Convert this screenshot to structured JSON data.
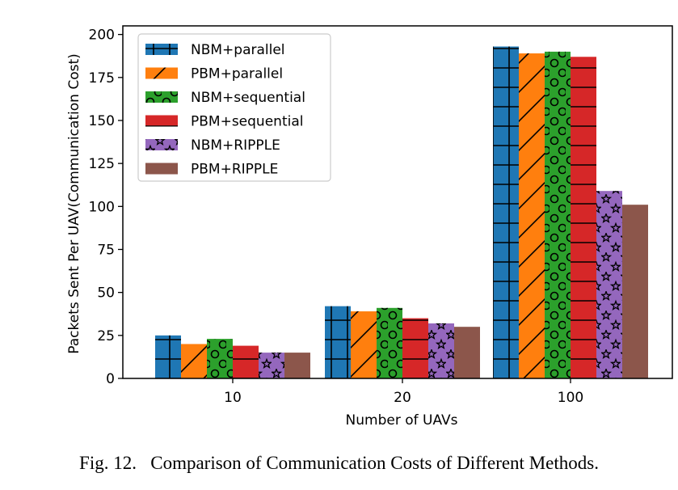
{
  "caption": {
    "prefix": "Fig. 12.",
    "text": "Comparison of Communication Costs of Different Methods."
  },
  "chart_data": {
    "type": "bar",
    "xlabel": "Number of UAVs",
    "ylabel": "Packets Sent Per UAV(Communication Cost)",
    "categories": [
      "10",
      "20",
      "100"
    ],
    "ylim": [
      0,
      205
    ],
    "yticks": [
      0,
      25,
      50,
      75,
      100,
      125,
      150,
      175,
      200
    ],
    "grid": false,
    "legend_position": "top-left",
    "series": [
      {
        "name": "NBM+parallel",
        "color": "#1f77b4",
        "pattern": "grid",
        "values": [
          25,
          42,
          193
        ]
      },
      {
        "name": "PBM+parallel",
        "color": "#ff7f0e",
        "pattern": "slash",
        "values": [
          20,
          39,
          189
        ]
      },
      {
        "name": "NBM+sequential",
        "color": "#2ca02c",
        "pattern": "circles",
        "values": [
          23,
          41,
          190
        ]
      },
      {
        "name": "PBM+sequential",
        "color": "#d62728",
        "pattern": "hlines",
        "values": [
          19,
          35,
          187
        ]
      },
      {
        "name": "NBM+RIPPLE",
        "color": "#9467bd",
        "pattern": "stars",
        "values": [
          15,
          32,
          109
        ]
      },
      {
        "name": "PBM+RIPPLE",
        "color": "#8c564b",
        "pattern": "none",
        "values": [
          15,
          30,
          101
        ]
      }
    ]
  }
}
